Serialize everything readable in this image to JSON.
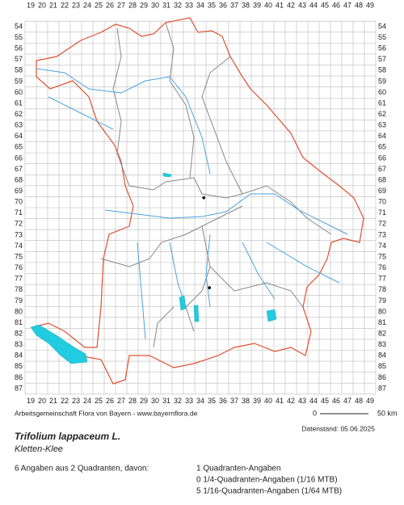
{
  "map": {
    "columns": [
      19,
      20,
      21,
      22,
      23,
      24,
      25,
      26,
      27,
      28,
      29,
      30,
      31,
      32,
      33,
      34,
      35,
      36,
      37,
      38,
      39,
      40,
      41,
      42,
      43,
      44,
      45,
      46,
      47,
      48,
      49
    ],
    "rows": [
      54,
      55,
      56,
      57,
      58,
      59,
      60,
      61,
      62,
      63,
      64,
      65,
      66,
      67,
      68,
      69,
      70,
      71,
      72,
      73,
      74,
      75,
      76,
      77,
      78,
      79,
      80,
      81,
      82,
      83,
      84,
      85,
      86,
      87
    ],
    "occurrences": [
      {
        "x": 34.3,
        "y": 69.6
      },
      {
        "x": 34.8,
        "y": 77.8
      }
    ],
    "scale": {
      "start": "0",
      "end": "50 km"
    }
  },
  "footer": {
    "credit": "Arbeitsgemeinschaft Flora von Bayern - www.bayernflora.de",
    "date": "Datenstand: 05.06.2025"
  },
  "species": {
    "scientific": "Trifolium lappaceum L.",
    "common": "Kletten-Klee"
  },
  "summary": {
    "total": "6 Angaben aus 2 Quadranten, davon:",
    "lines": [
      "1 Quadranten-Angaben",
      "0 1/4-Quadranten-Angaben (1/16 MTB)",
      "5 1/16-Quadranten-Angaben (1/64 MTB)"
    ]
  }
}
